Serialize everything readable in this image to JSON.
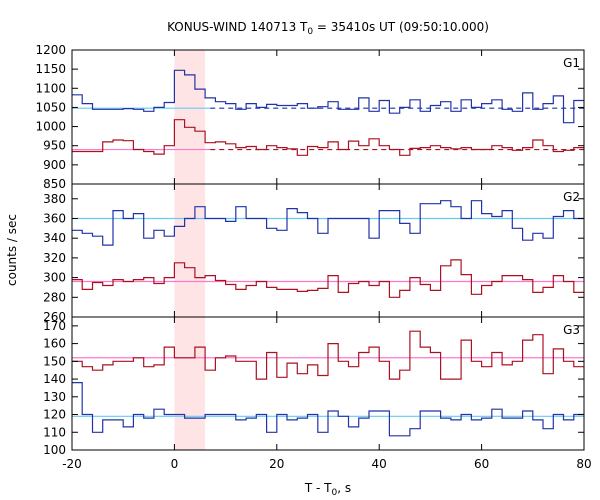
{
  "chart_data": {
    "type": "line",
    "title_parts": {
      "a": "KONUS-WIND 140713 T",
      "sub": "0",
      "b": " = 35410s UT (09:50:10.000)"
    },
    "xlabel_parts": {
      "a": "T - T",
      "sub": "0",
      "b": ", s"
    },
    "ylabel": "counts / sec",
    "xlim": [
      -20,
      80
    ],
    "xticks": [
      -20,
      0,
      20,
      40,
      60,
      80
    ],
    "shaded_interval": {
      "x": [
        0,
        6
      ],
      "color": "#ffe4e6"
    },
    "bin_edges": [
      -20,
      -18,
      -16,
      -14,
      -12,
      -10,
      -8,
      -6,
      -4,
      -2,
      0,
      2,
      4,
      6,
      8,
      10,
      12,
      14,
      16,
      18,
      20,
      22,
      24,
      26,
      28,
      30,
      32,
      34,
      36,
      38,
      40,
      42,
      44,
      46,
      48,
      50,
      52,
      54,
      56,
      58,
      60,
      62,
      64,
      66,
      68,
      70,
      72,
      74,
      76,
      78,
      80
    ],
    "panels": [
      {
        "label": "G1",
        "ylim": [
          850,
          1200
        ],
        "yticks": [
          850,
          900,
          950,
          1000,
          1050,
          1100,
          1150,
          1200
        ],
        "series": [
          {
            "color": "#2233aa",
            "values": [
              1083,
              1060,
              1045,
              1045,
              1045,
              1047,
              1045,
              1040,
              1050,
              1063,
              1147,
              1135,
              1098,
              1075,
              1065,
              1060,
              1045,
              1060,
              1050,
              1058,
              1055,
              1055,
              1060,
              1048,
              1052,
              1065,
              1045,
              1045,
              1075,
              1040,
              1068,
              1035,
              1050,
              1070,
              1040,
              1055,
              1065,
              1040,
              1070,
              1050,
              1060,
              1070,
              1045,
              1040,
              1088,
              1045,
              1060,
              1080,
              1010,
              1068
            ]
          },
          {
            "color": "#aa1122",
            "values": [
              935,
              935,
              935,
              960,
              965,
              963,
              940,
              935,
              928,
              950,
              1018,
              998,
              988,
              958,
              960,
              955,
              945,
              948,
              940,
              950,
              945,
              942,
              925,
              948,
              945,
              960,
              940,
              962,
              950,
              968,
              950,
              940,
              925,
              943,
              945,
              950,
              945,
              942,
              945,
              940,
              940,
              950,
              945,
              938,
              945,
              965,
              950,
              935,
              938,
              945
            ]
          }
        ],
        "fits": [
          {
            "color": "#66ccee",
            "y": 1048,
            "segment": [
              -20,
              7
            ]
          },
          {
            "color": "#1133aa",
            "y": 1048,
            "segment": [
              7,
              80
            ],
            "dashed": true
          },
          {
            "color": "#ff77cc",
            "y": 940,
            "segment": [
              -20,
              7
            ]
          },
          {
            "color": "#aa1122",
            "y": 940,
            "segment": [
              7,
              80
            ],
            "dashed": true
          }
        ]
      },
      {
        "label": "G2",
        "ylim": [
          260,
          395
        ],
        "yticks": [
          260,
          280,
          300,
          320,
          340,
          360,
          380
        ],
        "series": [
          {
            "color": "#2233aa",
            "values": [
              348,
              345,
              342,
              333,
              368,
              360,
              365,
              340,
              348,
              342,
              352,
              360,
              372,
              360,
              360,
              357,
              372,
              360,
              360,
              350,
              348,
              370,
              366,
              360,
              345,
              360,
              360,
              360,
              360,
              340,
              368,
              368,
              355,
              345,
              375,
              375,
              378,
              372,
              360,
              378,
              365,
              362,
              368,
              350,
              338,
              345,
              340,
              362,
              368,
              360
            ]
          },
          {
            "color": "#aa1122",
            "values": [
              298,
              288,
              295,
              292,
              298,
              296,
              298,
              300,
              294,
              300,
              315,
              310,
              300,
              302,
              297,
              293,
              288,
              292,
              296,
              290,
              288,
              288,
              286,
              287,
              289,
              302,
              285,
              294,
              296,
              292,
              296,
              280,
              287,
              300,
              293,
              287,
              312,
              318,
              303,
              283,
              292,
              296,
              302,
              302,
              298,
              285,
              290,
              302,
              296,
              285
            ]
          }
        ],
        "fits": [
          {
            "color": "#66ccee",
            "y": 360,
            "segment": [
              -20,
              80
            ]
          },
          {
            "color": "#ff77cc",
            "y": 296,
            "segment": [
              -20,
              80
            ]
          }
        ]
      },
      {
        "label": "G3",
        "ylim": [
          100,
          175
        ],
        "yticks": [
          100,
          110,
          120,
          130,
          140,
          150,
          160,
          170
        ],
        "series": [
          {
            "color": "#aa1122",
            "values": [
              150,
              147,
              145,
              148,
              150,
              150,
              152,
              147,
              148,
              158,
              152,
              152,
              158,
              145,
              152,
              153,
              150,
              150,
              140,
              155,
              141,
              149,
              143,
              148,
              142,
              160,
              150,
              147,
              155,
              158,
              150,
              140,
              145,
              167,
              158,
              155,
              140,
              140,
              162,
              150,
              147,
              155,
              148,
              150,
              162,
              165,
              143,
              157,
              150,
              147
            ]
          },
          {
            "color": "#2233aa",
            "values": [
              138,
              120,
              110,
              117,
              117,
              113,
              120,
              118,
              123,
              120,
              120,
              118,
              118,
              120,
              120,
              120,
              117,
              118,
              120,
              110,
              120,
              117,
              118,
              120,
              110,
              122,
              119,
              113,
              118,
              122,
              122,
              108,
              108,
              112,
              122,
              122,
              118,
              117,
              120,
              117,
              118,
              123,
              118,
              118,
              122,
              117,
              112,
              120,
              117,
              120
            ]
          }
        ],
        "fits": [
          {
            "color": "#ff77cc",
            "y": 152,
            "segment": [
              -20,
              80
            ]
          },
          {
            "color": "#66ccee",
            "y": 119,
            "segment": [
              -20,
              80
            ]
          }
        ]
      }
    ]
  }
}
